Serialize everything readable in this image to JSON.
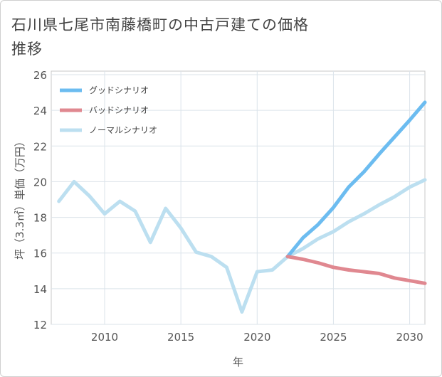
{
  "page": {
    "title": "石川県七尾市南藤橋町の中古戸建ての価格推移"
  },
  "chart_data": {
    "type": "line",
    "title": "石川県七尾市南藤橋町の中古戸建ての価格推移",
    "xlabel": "年",
    "ylabel": "坪（3.3㎡）単価（万円）",
    "xlim": [
      2006.5,
      2031
    ],
    "ylim": [
      12,
      26.2
    ],
    "x_ticks": [
      2010,
      2015,
      2020,
      2025,
      2030
    ],
    "y_ticks": [
      12,
      14,
      16,
      18,
      20,
      22,
      24,
      26
    ],
    "grid": true,
    "legend_position": "top-left",
    "series": [
      {
        "name": "ノーマルシナリオ",
        "color": "#bcdff0",
        "x": [
          2007,
          2008,
          2009,
          2010,
          2011,
          2012,
          2013,
          2014,
          2015,
          2016,
          2017,
          2018,
          2019,
          2020,
          2021,
          2022,
          2023,
          2024,
          2025,
          2026,
          2027,
          2028,
          2029,
          2030,
          2031
        ],
        "values": [
          18.9,
          20.0,
          19.2,
          18.2,
          18.9,
          18.35,
          16.6,
          18.5,
          17.4,
          16.05,
          15.8,
          15.2,
          12.7,
          14.95,
          15.05,
          15.8,
          16.25,
          16.8,
          17.2,
          17.75,
          18.2,
          18.7,
          19.15,
          19.7,
          20.1
        ]
      },
      {
        "name": "グッドシナリオ",
        "color": "#6cbcf0",
        "x": [
          2022,
          2023,
          2024,
          2025,
          2026,
          2027,
          2028,
          2029,
          2030,
          2031
        ],
        "values": [
          15.8,
          16.85,
          17.6,
          18.55,
          19.7,
          20.55,
          21.55,
          22.5,
          23.45,
          24.45
        ]
      },
      {
        "name": "バッドシナリオ",
        "color": "#e08890",
        "x": [
          2022,
          2023,
          2024,
          2025,
          2026,
          2027,
          2028,
          2029,
          2030,
          2031
        ],
        "values": [
          15.8,
          15.65,
          15.45,
          15.2,
          15.05,
          14.95,
          14.85,
          14.6,
          14.45,
          14.3
        ]
      }
    ],
    "legend": [
      {
        "name": "グッドシナリオ",
        "color": "#6cbcf0"
      },
      {
        "name": "バッドシナリオ",
        "color": "#e08890"
      },
      {
        "name": "ノーマルシナリオ",
        "color": "#bcdff0"
      }
    ]
  }
}
